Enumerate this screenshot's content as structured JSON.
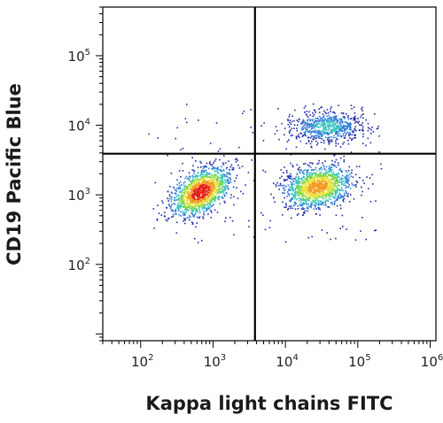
{
  "chart_data": {
    "type": "scatter",
    "subtype": "flow-cytometry-density-dot-plot",
    "xlabel": "Kappa light chains FITC",
    "ylabel": "CD19 Pacific Blue",
    "x_scale": "log",
    "y_scale": "log",
    "xlim": [
      30,
      1200000
    ],
    "ylim": [
      8,
      500000
    ],
    "x_ticks": [
      {
        "value": 100,
        "base": "10",
        "exp": "2"
      },
      {
        "value": 1000,
        "base": "10",
        "exp": "3"
      },
      {
        "value": 10000,
        "base": "10",
        "exp": "4"
      },
      {
        "value": 100000,
        "base": "10",
        "exp": "5"
      },
      {
        "value": 1000000,
        "base": "10",
        "exp": "6"
      }
    ],
    "y_ticks": [
      {
        "value": 100,
        "base": "10",
        "exp": "2"
      },
      {
        "value": 1000,
        "base": "10",
        "exp": "3"
      },
      {
        "value": 10000,
        "base": "10",
        "exp": "4"
      },
      {
        "value": 100000,
        "base": "10",
        "exp": "5"
      }
    ],
    "quadrant_gates": {
      "x": 3800,
      "y": 3900
    },
    "grid": false,
    "legend": "none",
    "color_scale": [
      "#1f2aa8",
      "#2f7fd6",
      "#37c4c0",
      "#7ad64a",
      "#e8e23a",
      "#f39a26",
      "#e3241b"
    ],
    "populations": [
      {
        "center_x": 680,
        "center_y": 1100,
        "events": 1400,
        "peak_density": "high"
      },
      {
        "center_x": 28000,
        "center_y": 1300,
        "events": 1300,
        "peak_density": "medium"
      },
      {
        "center_x": 38000,
        "center_y": 9500,
        "events": 650,
        "peak_density": "low"
      }
    ]
  }
}
